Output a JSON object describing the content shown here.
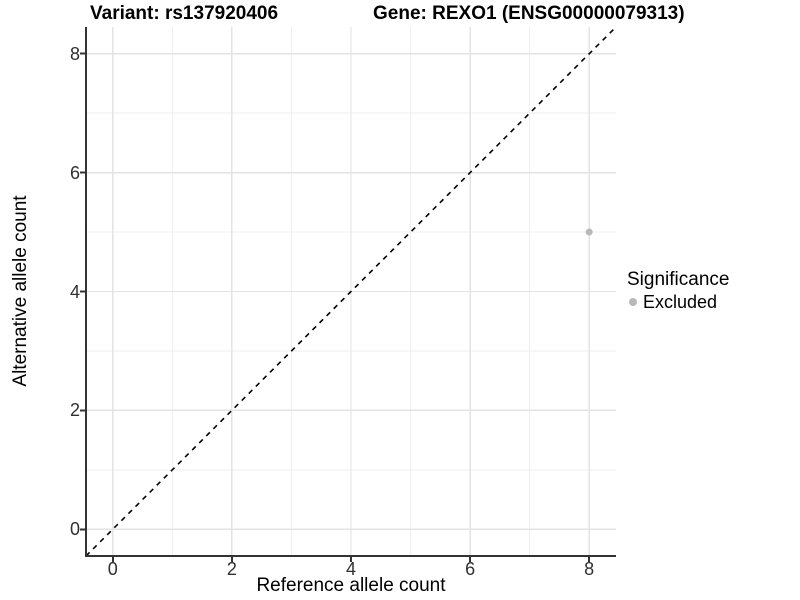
{
  "title": {
    "variant": "Variant: rs137920406",
    "gene": "Gene: REXO1 (ENSG00000079313)"
  },
  "legend": {
    "title": "Significance",
    "entries": [
      {
        "label": "Excluded",
        "color": "#b9b9b9"
      }
    ]
  },
  "colors": {
    "background": "#ffffff",
    "axis_line": "#333333",
    "major_gridline": "#e3e3e3",
    "minor_gridline": "#efefef",
    "reference_line": "#000000",
    "point": "#b9b9b9",
    "tick_label": "#303030"
  },
  "chart_data": {
    "type": "scatter",
    "title": "Variant: rs137920406    Gene: REXO1 (ENSG00000079313)",
    "xlabel": "Reference allele count",
    "ylabel": "Alternative allele count",
    "xlim": [
      -0.45,
      8.45
    ],
    "ylim": [
      -0.45,
      8.45
    ],
    "x_major_ticks": [
      0,
      2,
      4,
      6,
      8
    ],
    "x_minor_ticks": [
      1,
      3,
      5,
      7
    ],
    "y_major_ticks": [
      0,
      2,
      4,
      6,
      8
    ],
    "y_minor_ticks": [
      1,
      3,
      5,
      7
    ],
    "grid": "on",
    "legend_position": "right",
    "legend_title": "Significance",
    "series": [
      {
        "name": "Excluded",
        "color": "#b9b9b9",
        "points": [
          {
            "x": 8,
            "y": 5
          }
        ]
      }
    ],
    "reference_line": {
      "type": "identity",
      "slope": 1,
      "intercept": 0,
      "style": "dashed",
      "color": "#000000"
    }
  }
}
